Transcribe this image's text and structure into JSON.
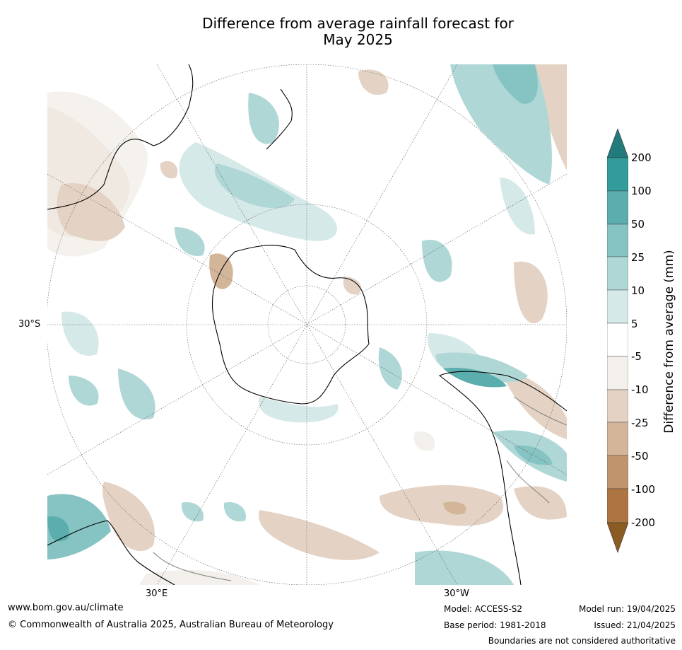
{
  "title_line1": "Difference from average rainfall forecast for",
  "title_line2": "May 2025",
  "map": {
    "lat_label": "30°S",
    "lon_label_east": "30°E",
    "lon_label_west": "30°W",
    "colors": {
      "wet_200": "#237a7a",
      "wet_100": "#329b9b",
      "wet_50": "#5cadad",
      "wet_25": "#86c3c3",
      "wet_10": "#aed7d6",
      "wet_5": "#d5e9e8",
      "neutral": "#ffffff",
      "dry_5": "#f3efea",
      "dry_10": "#e4d3c4",
      "dry_25": "#d3b59a",
      "dry_50": "#c0946d",
      "dry_100": "#ac7541",
      "dry_200": "#8c5a23",
      "land_line": "#000000",
      "border_line": "#808080",
      "grid_line": "#555555"
    }
  },
  "legend": {
    "title": "Difference from average (mm)",
    "ticks": [
      "200",
      "100",
      "50",
      "25",
      "10",
      "5",
      "-5",
      "-10",
      "-25",
      "-50",
      "-100",
      "-200"
    ]
  },
  "footer": {
    "website": "www.bom.gov.au/climate",
    "copyright": "© Commonwealth of Australia 2025, Australian Bureau of Meteorology",
    "model": "Model: ACCESS-S2",
    "base_period": "Base period: 1981-2018",
    "model_run": "Model run: 19/04/2025",
    "issued": "Issued: 21/04/2025",
    "disclaimer": "Boundaries are not considered authoritative"
  }
}
